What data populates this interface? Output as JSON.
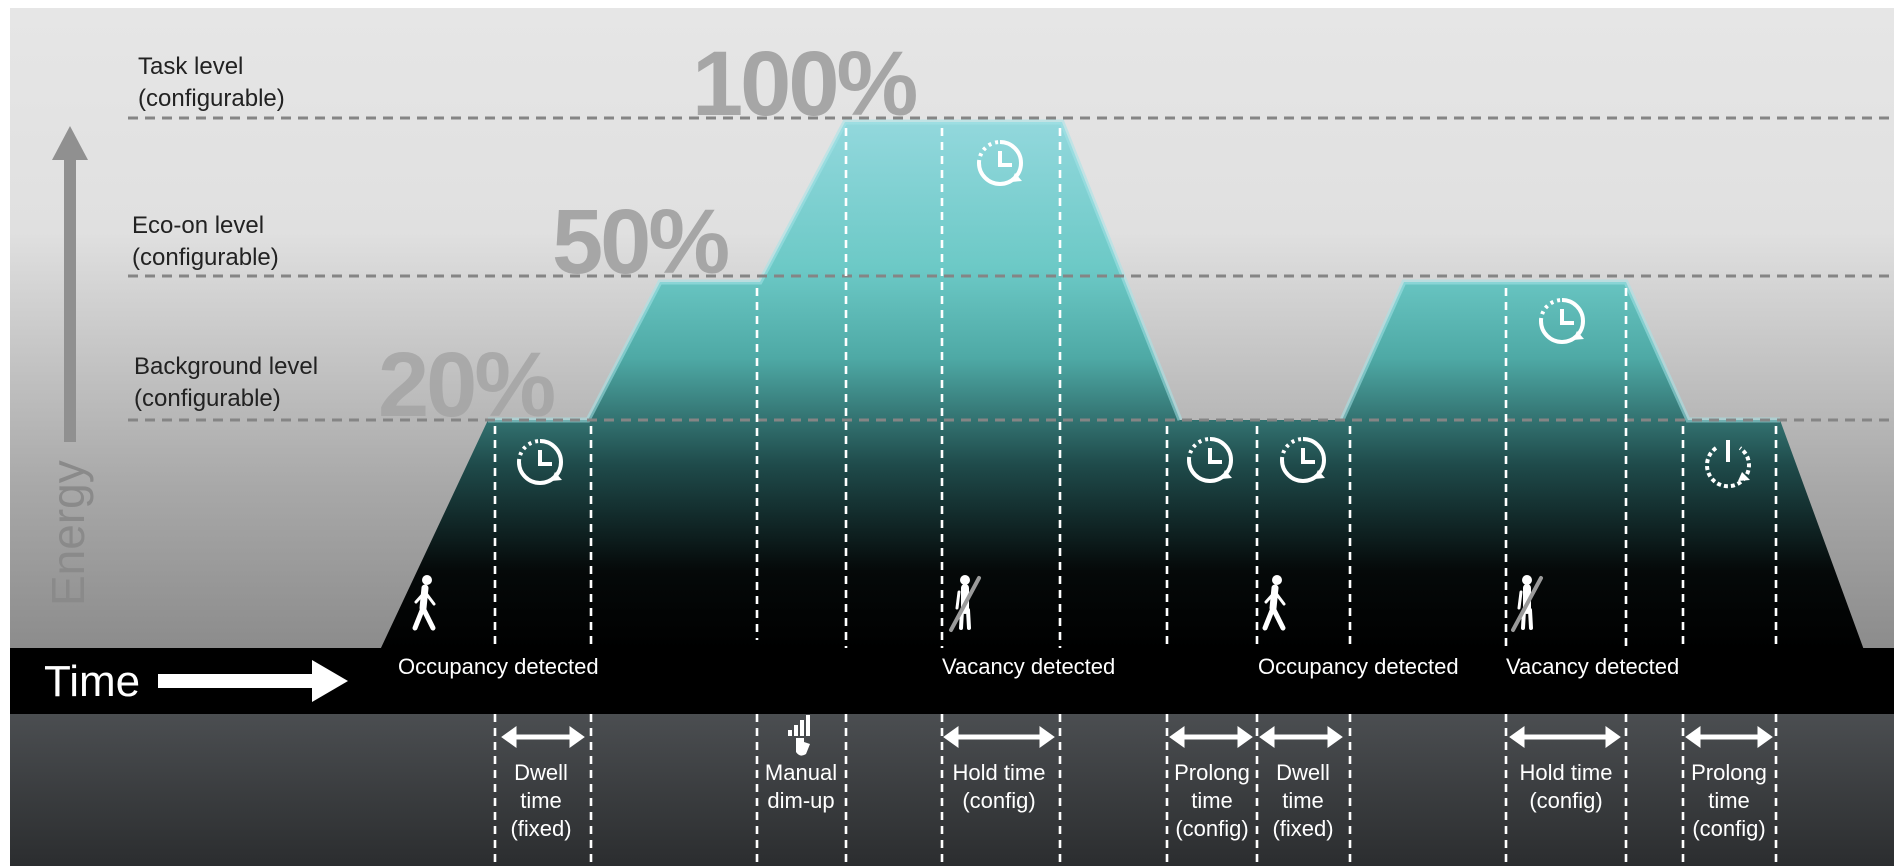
{
  "colors": {
    "background_top": "#e4e4e4",
    "background_bottom": "#8a8a8a",
    "timeline_band": "#000000",
    "bottom_panel_top": "#4a4d4f",
    "bottom_panel_bottom": "#2a2c2e",
    "fill_top": "#8fd6db",
    "fill_mid": "#4fb3ae",
    "fill_bottom": "#000000",
    "level_line": "#8a8a8a",
    "percent_text": "#a9a9a9",
    "label_text": "#222222",
    "white": "#ffffff"
  },
  "levels": [
    {
      "id": "task",
      "name": "Task level",
      "sub": "(configurable)",
      "percent": "100%"
    },
    {
      "id": "eco",
      "name": "Eco-on level",
      "sub": "(configurable)",
      "percent": "50%"
    },
    {
      "id": "background",
      "name": "Background level",
      "sub": "(configurable)",
      "percent": "20%"
    }
  ],
  "axes": {
    "y_label": "Energy",
    "x_label": "Time"
  },
  "events": [
    {
      "label": "Occupancy detected",
      "icon": "walking-person-icon"
    },
    {
      "label": "Vacancy detected",
      "icon": "no-person-icon"
    },
    {
      "label": "Occupancy detected",
      "icon": "walking-person-icon"
    },
    {
      "label": "Vacancy detected",
      "icon": "no-person-icon"
    }
  ],
  "intervals": [
    {
      "lines": [
        "Dwell",
        "time",
        "(fixed)"
      ],
      "icon": "timer-icon"
    },
    {
      "lines": [
        "Manual",
        "dim-up"
      ],
      "icon": "dim-up-icon"
    },
    {
      "lines": [
        "Hold time",
        "(config)"
      ],
      "icon": "timer-icon"
    },
    {
      "lines": [
        "Prolong",
        "time",
        "(config)"
      ],
      "icon": "timer-icon"
    },
    {
      "lines": [
        "Dwell",
        "time",
        "(fixed)"
      ],
      "icon": "timer-icon"
    },
    {
      "lines": [
        "Hold time",
        "(config)"
      ],
      "icon": "timer-icon"
    },
    {
      "lines": [
        "Prolong",
        "time",
        "(config)"
      ],
      "icon": "power-icon"
    }
  ]
}
